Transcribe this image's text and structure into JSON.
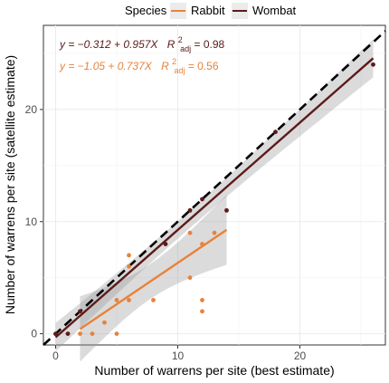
{
  "chart_data": {
    "type": "scatter",
    "title": "",
    "xlabel": "Number of warrens per site (best estimate)",
    "ylabel": "Number of warrens per site (satellite estimate)",
    "xlim": [
      -1,
      27
    ],
    "ylim": [
      -1,
      27.5
    ],
    "xticks": [
      0,
      10,
      20
    ],
    "yticks": [
      0,
      10,
      20
    ],
    "grid": true,
    "legend": {
      "title": "Species",
      "position": "top"
    },
    "reference_line": {
      "type": "1:1",
      "intercept": 0,
      "slope": 1,
      "style": "dashed",
      "color": "#000000"
    },
    "series": [
      {
        "name": "Rabbit",
        "color": "#e8823a",
        "fit": {
          "intercept": -1.05,
          "slope": 0.737,
          "x_range": [
            2,
            14
          ]
        },
        "equation_text": "y = −1.05 + 0.737X",
        "r2_label": "R",
        "r2_sup": "2",
        "r2_sub": "adj",
        "r2_value": " = 0.56",
        "points": [
          [
            2,
            0
          ],
          [
            3,
            0
          ],
          [
            4,
            1
          ],
          [
            5,
            0
          ],
          [
            5,
            3
          ],
          [
            6,
            3
          ],
          [
            6,
            6
          ],
          [
            6,
            7
          ],
          [
            8,
            3
          ],
          [
            11,
            5
          ],
          [
            11,
            9
          ],
          [
            12,
            2
          ],
          [
            12,
            3
          ],
          [
            12,
            8
          ],
          [
            13,
            9
          ]
        ]
      },
      {
        "name": "Wombat",
        "color": "#5c1a1a",
        "fit": {
          "intercept": -0.312,
          "slope": 0.957,
          "x_range": [
            0,
            26
          ]
        },
        "equation_text": "y = −0.312 + 0.957X",
        "r2_label": "R",
        "r2_sup": "2",
        "r2_sub": "adj",
        "r2_value": " = 0.98",
        "points": [
          [
            0,
            0
          ],
          [
            1,
            0
          ],
          [
            2,
            2
          ],
          [
            9,
            8
          ],
          [
            11,
            11
          ],
          [
            12,
            12
          ],
          [
            14,
            11
          ],
          [
            18,
            18
          ],
          [
            26,
            24
          ]
        ]
      }
    ]
  }
}
